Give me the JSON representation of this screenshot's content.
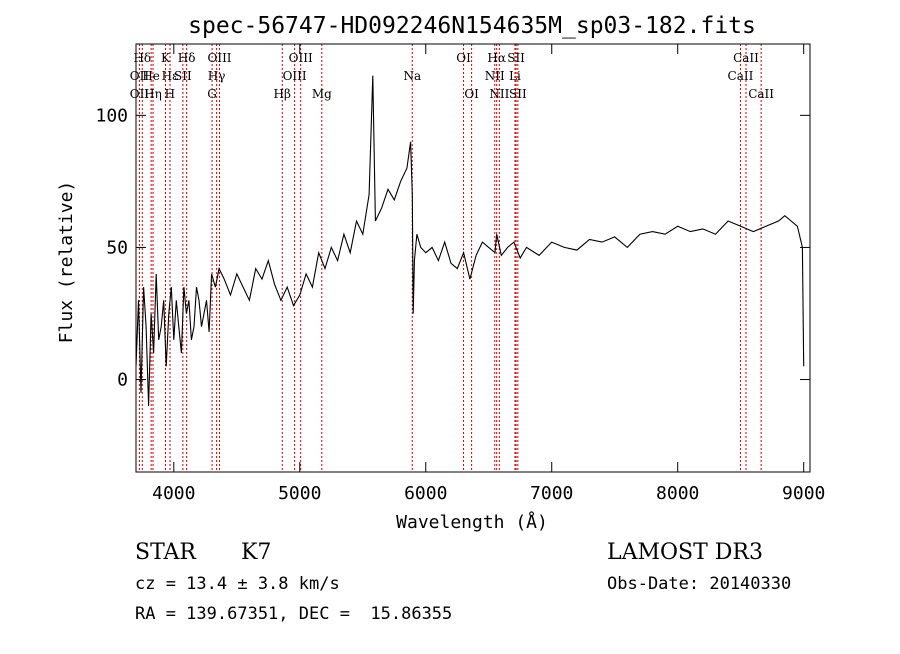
{
  "chart_data": {
    "type": "line",
    "title": "spec-56747-HD092246N154635M_sp03-182.fits",
    "xlabel": "Wavelength (Å)",
    "ylabel": "Flux (relative)",
    "xlim": [
      3700,
      9050
    ],
    "ylim": [
      -35,
      127
    ],
    "xticks": [
      4000,
      5000,
      6000,
      7000,
      8000,
      9000
    ],
    "yticks": [
      0,
      50,
      100
    ],
    "line_color": "#000000",
    "marker_color": "#cc0000",
    "series": [
      {
        "x": [
          3700,
          3720,
          3740,
          3760,
          3780,
          3800,
          3820,
          3840,
          3860,
          3880,
          3900,
          3920,
          3940,
          3960,
          3980,
          4000,
          4020,
          4040,
          4060,
          4080,
          4100,
          4120,
          4140,
          4160,
          4180,
          4200,
          4220,
          4240,
          4260,
          4280,
          4300,
          4330,
          4360,
          4400,
          4450,
          4500,
          4550,
          4600,
          4650,
          4700,
          4750,
          4800,
          4850,
          4900,
          4950,
          5000,
          5050,
          5100,
          5150,
          5200,
          5250,
          5300,
          5350,
          5400,
          5450,
          5500,
          5550,
          5580,
          5600,
          5650,
          5700,
          5750,
          5800,
          5850,
          5880,
          5893,
          5900,
          5910,
          5930,
          5960,
          6000,
          6050,
          6100,
          6150,
          6200,
          6250,
          6300,
          6350,
          6400,
          6450,
          6500,
          6550,
          6563,
          6600,
          6650,
          6700,
          6750,
          6800,
          6900,
          7000,
          7100,
          7200,
          7300,
          7400,
          7500,
          7600,
          7700,
          7800,
          7900,
          8000,
          8100,
          8200,
          8300,
          8400,
          8500,
          8600,
          8700,
          8800,
          8850,
          8900,
          8950,
          8990,
          9000
        ],
        "y": [
          5,
          30,
          -5,
          35,
          20,
          -10,
          25,
          10,
          40,
          15,
          20,
          30,
          5,
          25,
          35,
          15,
          30,
          20,
          10,
          35,
          25,
          30,
          15,
          20,
          35,
          30,
          20,
          25,
          30,
          18,
          40,
          35,
          42,
          38,
          32,
          40,
          35,
          30,
          42,
          38,
          45,
          36,
          30,
          35,
          28,
          32,
          40,
          35,
          48,
          42,
          50,
          45,
          55,
          48,
          60,
          55,
          70,
          115,
          60,
          65,
          72,
          68,
          75,
          80,
          90,
          70,
          25,
          45,
          55,
          50,
          48,
          50,
          45,
          52,
          44,
          42,
          48,
          38,
          47,
          52,
          50,
          48,
          55,
          47,
          50,
          52,
          46,
          50,
          47,
          52,
          50,
          49,
          53,
          52,
          54,
          50,
          55,
          56,
          55,
          58,
          56,
          57,
          55,
          60,
          58,
          56,
          58,
          60,
          62,
          60,
          58,
          50,
          5
        ]
      }
    ],
    "lines": [
      {
        "label": "Hδ",
        "x": 3750,
        "row": 0
      },
      {
        "label": "OII",
        "x": 3727,
        "row": 1
      },
      {
        "label": "OII",
        "x": 3727,
        "row": 2
      },
      {
        "label": "He",
        "x": 3820,
        "row": 1
      },
      {
        "label": "Hη",
        "x": 3835,
        "row": 2
      },
      {
        "label": "K",
        "x": 3934,
        "row": 0
      },
      {
        "label": "Hε",
        "x": 3970,
        "row": 1
      },
      {
        "label": "H",
        "x": 3969,
        "row": 2
      },
      {
        "label": "Hδ",
        "x": 4102,
        "row": 0
      },
      {
        "label": "SII",
        "x": 4072,
        "row": 1
      },
      {
        "label": "OIII",
        "x": 4363,
        "row": 0
      },
      {
        "label": "Hγ",
        "x": 4340,
        "row": 1
      },
      {
        "label": "G",
        "x": 4304,
        "row": 2
      },
      {
        "label": "Hβ",
        "x": 4861,
        "row": 2
      },
      {
        "label": "OIII",
        "x": 5007,
        "row": 0
      },
      {
        "label": "OIII",
        "x": 4959,
        "row": 1
      },
      {
        "label": "Mg",
        "x": 5175,
        "row": 2
      },
      {
        "label": "Na",
        "x": 5893,
        "row": 1
      },
      {
        "label": "OI",
        "x": 6300,
        "row": 0
      },
      {
        "label": "OI",
        "x": 6364,
        "row": 2
      },
      {
        "label": "Hα",
        "x": 6563,
        "row": 0
      },
      {
        "label": "NII",
        "x": 6548,
        "row": 1
      },
      {
        "label": "NII",
        "x": 6584,
        "row": 2
      },
      {
        "label": "SII",
        "x": 6717,
        "row": 0
      },
      {
        "label": "Li",
        "x": 6708,
        "row": 1
      },
      {
        "label": "SII",
        "x": 6731,
        "row": 2
      },
      {
        "label": "CaII",
        "x": 8542,
        "row": 0
      },
      {
        "label": "CaII",
        "x": 8498,
        "row": 1
      },
      {
        "label": "CaII",
        "x": 8662,
        "row": 2
      }
    ]
  },
  "info": {
    "class": "STAR",
    "subclass": "K7",
    "survey": "LAMOST DR3",
    "cz": "cz = 13.4 ± 3.8 km/s",
    "obs_date": "Obs-Date: 20140330",
    "coords": "RA = 139.67351, DEC =  15.86355"
  }
}
